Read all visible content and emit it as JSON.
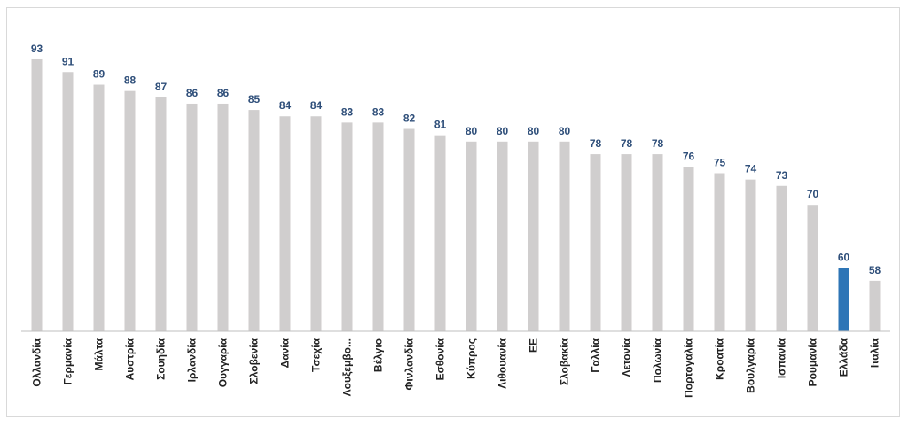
{
  "chart_data": {
    "type": "bar",
    "categories": [
      "Ολλανδία",
      "Γερμανία",
      "Μάλτα",
      "Αυστρία",
      "Σουηδία",
      "Ιρλανδία",
      "Ουγγαρία",
      "Σλοβενία",
      "Δανία",
      "Τσεχία",
      "Λουξεμβο...",
      "Βέλγιο",
      "Φινλανδία",
      "Εσθονία",
      "Κύπρος",
      "Λιθουανία",
      "ΕΕ",
      "Σλοβακία",
      "Γαλλία",
      "Λετονία",
      "Πολωνία",
      "Πορτογαλία",
      "Κροατία",
      "Βουλγαρία",
      "Ισπανία",
      "Ρουμανία",
      "Ελλάδα",
      "Ιταλία"
    ],
    "values": [
      93,
      91,
      89,
      88,
      87,
      86,
      86,
      85,
      84,
      84,
      83,
      83,
      82,
      81,
      80,
      80,
      80,
      80,
      78,
      78,
      78,
      76,
      75,
      74,
      73,
      70,
      60,
      58
    ],
    "colors": [
      "#d0cece",
      "#d0cece",
      "#d0cece",
      "#d0cece",
      "#d0cece",
      "#d0cece",
      "#d0cece",
      "#d0cece",
      "#d0cece",
      "#d0cece",
      "#d0cece",
      "#d0cece",
      "#d0cece",
      "#d0cece",
      "#d0cece",
      "#d0cece",
      "#d0cece",
      "#d0cece",
      "#d0cece",
      "#d0cece",
      "#d0cece",
      "#d0cece",
      "#d0cece",
      "#d0cece",
      "#d0cece",
      "#d0cece",
      "#2e75b6",
      "#d0cece"
    ],
    "ylim": [
      50,
      100
    ],
    "grid": false
  }
}
